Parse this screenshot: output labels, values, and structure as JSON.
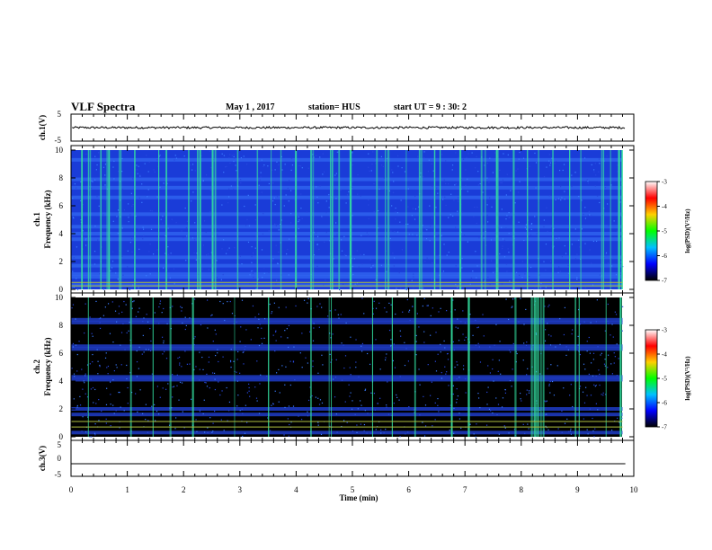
{
  "header": {
    "title": "VLF Spectra",
    "date": "May 1 , 2017",
    "station": "station= HUS",
    "start": "start UT = 9 : 30: 2"
  },
  "chart_data": [
    {
      "type": "line",
      "name": "ch1-waveform",
      "ylabel": "ch.1(V)",
      "ylim": [
        -5,
        5
      ],
      "yticks": [
        "5",
        "-5"
      ],
      "trace_level_v": 0.0,
      "trace_amplitude_v": 0.4
    },
    {
      "type": "heatmap",
      "name": "ch1-spectrogram",
      "ylabel_line1": "ch.1",
      "ylabel_line2": "Frequency (kHz)",
      "ylim": [
        0,
        10
      ],
      "yticks": [
        "0",
        "2",
        "4",
        "6",
        "8",
        "10"
      ],
      "xlim_min": [
        0,
        10
      ],
      "background_color": "#1a3cd8",
      "bright_color": "#33e0a0",
      "sferic_times_min": [
        0.18,
        0.3,
        0.33,
        0.52,
        0.63,
        0.66,
        0.85,
        0.88,
        1.12,
        1.55,
        1.68,
        2.08,
        2.24,
        2.28,
        2.5,
        2.55,
        2.95,
        3.3,
        3.55,
        3.72,
        3.98,
        4.25,
        4.3,
        4.6,
        4.63,
        4.75,
        4.95,
        5.42,
        5.58,
        5.62,
        5.95,
        6.18,
        6.22,
        6.45,
        6.55,
        6.9,
        7.28,
        7.35,
        7.55,
        7.58,
        7.85,
        8.1,
        8.3,
        8.55,
        8.85,
        9.05,
        9.42,
        9.45,
        9.58,
        9.72,
        9.78
      ],
      "band_freqs_khz": [
        0.3,
        0.9,
        1.1,
        1.7,
        2.3,
        3.6,
        4.0,
        4.5,
        5.4,
        6.6,
        7.3,
        7.9,
        9.3
      ],
      "line_freqs_khz": [
        0.25,
        0.5
      ]
    },
    {
      "type": "heatmap",
      "name": "ch2-spectrogram",
      "ylabel_line1": "ch.2",
      "ylabel_line2": "Frequency (kHz)",
      "ylim": [
        0,
        10
      ],
      "yticks": [
        "0",
        "2",
        "4",
        "6",
        "8",
        "10"
      ],
      "xlim_min": [
        0,
        10
      ],
      "background_color": "#000000",
      "bright_color": "#33e0a0",
      "sferic_times_min": [
        0.3,
        1.05,
        1.45,
        1.75,
        2.15,
        2.9,
        3.5,
        4.25,
        4.58,
        4.62,
        5.35,
        5.7,
        6.1,
        6.75,
        7.05,
        7.88,
        8.17,
        8.22,
        8.26,
        8.3,
        8.34,
        8.38,
        8.95,
        9.02,
        9.5,
        9.75
      ],
      "band_freqs_khz": [
        0.3,
        1.6,
        2.0,
        4.1,
        4.3,
        6.3,
        6.5,
        8.2,
        8.4
      ],
      "line_freqs_khz": [
        0.7,
        1.1
      ]
    },
    {
      "type": "line",
      "name": "ch3-waveform",
      "ylabel": "ch.3(V)",
      "ylim": [
        -5,
        5
      ],
      "yticks": [
        "5",
        "0",
        "-5"
      ],
      "trace_level_v": -1.5,
      "trace_amplitude_v": 0.0
    }
  ],
  "xaxis": {
    "label": "Time (min)",
    "min": 0,
    "max": 10,
    "ticks": [
      "0",
      "1",
      "2",
      "3",
      "4",
      "5",
      "6",
      "7",
      "8",
      "9",
      "10"
    ]
  },
  "colorbar": {
    "label": "log(PSD)(V²/Hz)",
    "ticks": [
      "-3",
      "-4",
      "-5",
      "-6",
      "-7"
    ],
    "colors": [
      "#ffffff",
      "#ff0000",
      "#ffd000",
      "#00ff00",
      "#00c0ff",
      "#0000ff",
      "#000000"
    ]
  }
}
